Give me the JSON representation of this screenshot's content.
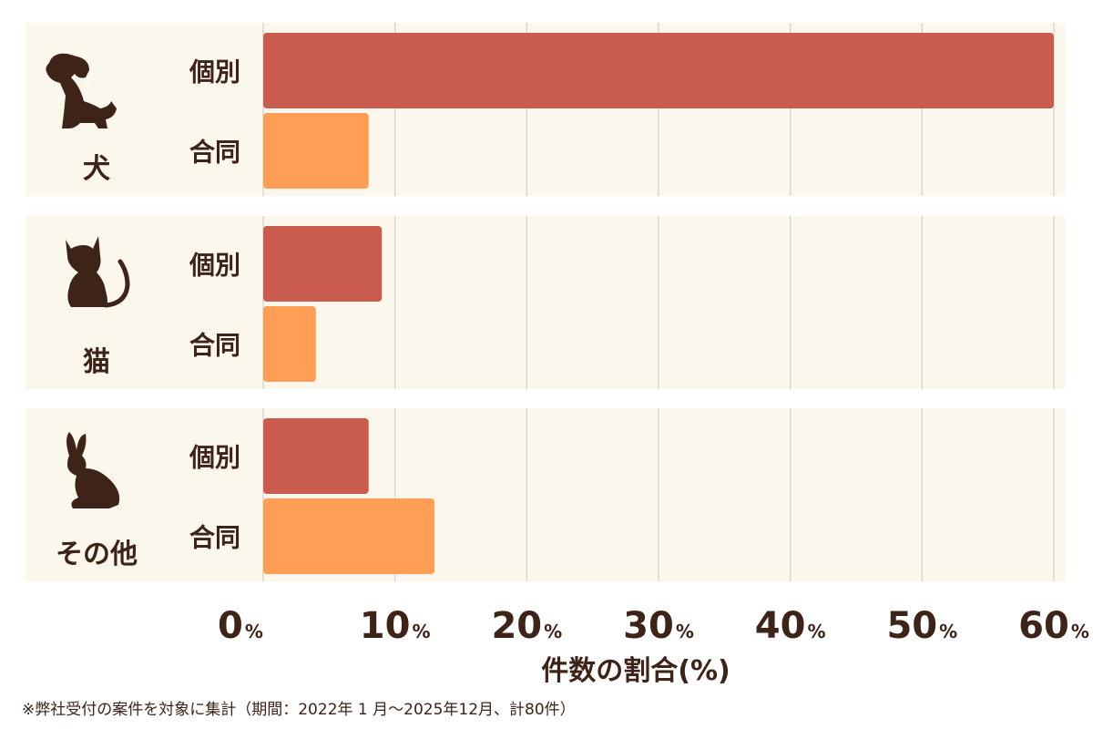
{
  "colors": {
    "individual": "#c95c4e",
    "joint": "#ff9e54",
    "band": "#fcf7ec",
    "text": "#3d2318",
    "grid": "#d9d2c6"
  },
  "chart_data": {
    "type": "bar",
    "orientation": "horizontal",
    "groups": [
      {
        "label": "犬",
        "icon": "dog-icon",
        "bars": [
          {
            "label": "個別",
            "series": "individual",
            "value": 60
          },
          {
            "label": "合同",
            "series": "joint",
            "value": 8
          }
        ]
      },
      {
        "label": "猫",
        "icon": "cat-icon",
        "bars": [
          {
            "label": "個別",
            "series": "individual",
            "value": 9
          },
          {
            "label": "合同",
            "series": "joint",
            "value": 4
          }
        ]
      },
      {
        "label": "その他",
        "icon": "rabbit-icon",
        "bars": [
          {
            "label": "個別",
            "series": "individual",
            "value": 8
          },
          {
            "label": "合同",
            "series": "joint",
            "value": 13
          }
        ]
      }
    ],
    "xlim": [
      0,
      60
    ],
    "ticks": [
      0,
      10,
      20,
      30,
      40,
      50,
      60
    ],
    "tick_unit": "%",
    "xlabel": "件数の割合(%)",
    "grid": true
  },
  "footnote": "※弊社受付の案件を対象に集計（期間：2022年 1 月～2025年12月、計80件）"
}
